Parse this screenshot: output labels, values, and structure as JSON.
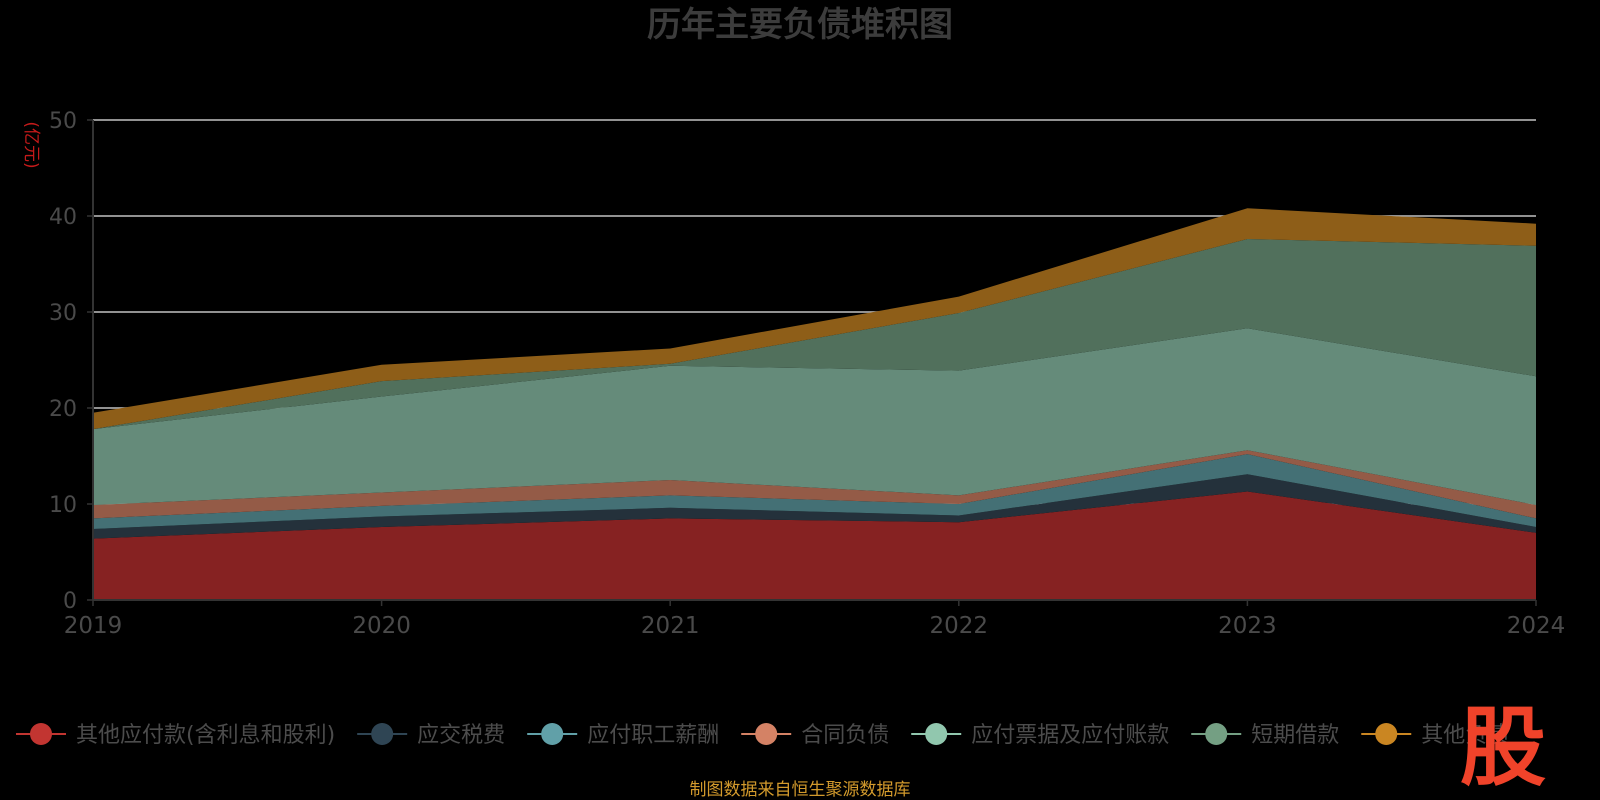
{
  "chart_data": {
    "type": "area",
    "stacked": true,
    "title": "历年主要负债堆积图",
    "unit_label": "(亿元)",
    "x": [
      "2019",
      "2020",
      "2021",
      "2022",
      "2023",
      "2024"
    ],
    "ylim": [
      0,
      50
    ],
    "y_ticks": [
      "0",
      "10",
      "20",
      "30",
      "40",
      "50"
    ],
    "grid": true,
    "legend_position": "bottom",
    "series": [
      {
        "name": "其他应付款(含利息和股利)",
        "color": "#c23531",
        "fill": "#862222",
        "values": [
          6.4,
          7.6,
          8.5,
          8.1,
          11.3,
          7.0
        ]
      },
      {
        "name": "应交税费",
        "color": "#2f4554",
        "fill": "#24313b",
        "values": [
          1.0,
          1.1,
          1.1,
          0.7,
          1.8,
          0.6
        ]
      },
      {
        "name": "应付职工薪酬",
        "color": "#61a0a8",
        "fill": "#447075",
        "values": [
          1.1,
          1.1,
          1.3,
          1.2,
          2.1,
          0.9
        ]
      },
      {
        "name": "合同负债",
        "color": "#d48265",
        "fill": "#945b47",
        "values": [
          1.4,
          1.4,
          1.6,
          0.9,
          0.4,
          1.4
        ]
      },
      {
        "name": "应付票据及应付账款",
        "color": "#91c7ae",
        "fill": "#658b7a",
        "values": [
          7.9,
          10.0,
          11.9,
          13.0,
          12.7,
          13.4
        ]
      },
      {
        "name": "短期借款",
        "color": "#749f83",
        "fill": "#51705c",
        "values": [
          0.0,
          1.6,
          0.2,
          6.0,
          9.3,
          13.6
        ]
      },
      {
        "name": "其他负债",
        "color": "#ca8622",
        "fill": "#8e5e18",
        "values": [
          1.7,
          1.7,
          1.6,
          1.7,
          3.2,
          2.3
        ]
      }
    ]
  },
  "footer": {
    "source_text": "制图数据来自恒生聚源数据库"
  },
  "watermark": {
    "text": "股",
    "color": "#f0432a"
  }
}
